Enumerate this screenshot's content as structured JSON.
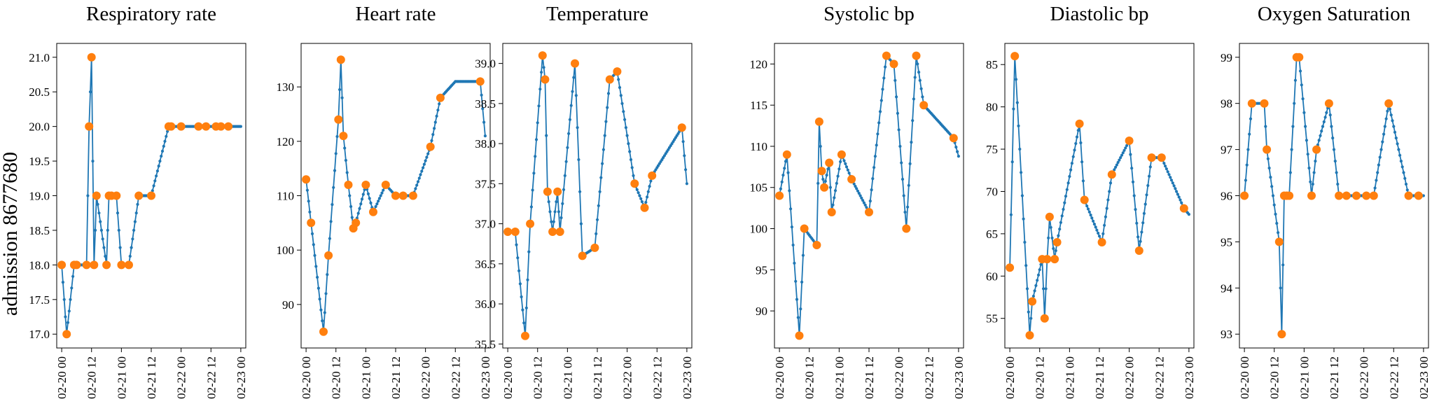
{
  "figure": {
    "row_label": "admission 8677680"
  },
  "chart_data": [
    {
      "type": "line",
      "title": "Respiratory rate",
      "xlabel": "",
      "ylabel": "",
      "ylim": [
        16.8,
        21.2
      ],
      "yticks": [
        17.0,
        17.5,
        18.0,
        18.5,
        19.0,
        19.5,
        20.0,
        20.5,
        21.0
      ],
      "ytick_labels": [
        "17.0",
        "17.5",
        "18.0",
        "18.5",
        "19.0",
        "19.5",
        "20.0",
        "20.5",
        "21.0"
      ],
      "xlim": [
        -2,
        74
      ],
      "xticks": [
        0,
        12,
        24,
        36,
        48,
        60,
        72
      ],
      "xtick_labels": [
        "02-20 00",
        "02-20 12",
        "02-21 00",
        "02-21 12",
        "02-22 00",
        "02-22 12",
        "02-23 00"
      ],
      "x_unit": "hours since 02-20 00:00",
      "series": [
        {
          "role": "interpolated",
          "color": "#1f77b4",
          "end_x": 72,
          "x": [
            0,
            2,
            5,
            6,
            10,
            11,
            12,
            13,
            14,
            18,
            19,
            20,
            22,
            24,
            27,
            31,
            36,
            43,
            44,
            48,
            55,
            58,
            62,
            64,
            67
          ],
          "y": [
            18,
            17,
            18,
            18,
            18,
            20,
            21,
            18,
            19,
            18,
            19,
            19,
            19,
            18,
            18,
            19,
            19,
            20,
            20,
            20,
            20,
            20,
            20,
            20,
            20
          ]
        },
        {
          "role": "observed",
          "color": "#ff7f0e",
          "x": [
            0,
            2,
            5,
            6,
            10,
            11,
            12,
            13,
            14,
            18,
            19,
            20,
            22,
            24,
            27,
            31,
            36,
            43,
            44,
            48,
            55,
            58,
            62,
            64,
            67
          ],
          "y": [
            18,
            17,
            18,
            18,
            18,
            20,
            21,
            18,
            19,
            18,
            19,
            19,
            19,
            18,
            18,
            19,
            19,
            20,
            20,
            20,
            20,
            20,
            20,
            20,
            20
          ]
        }
      ]
    },
    {
      "type": "line",
      "title": "Heart rate",
      "xlabel": "",
      "ylabel": "",
      "ylim": [
        82,
        138
      ],
      "yticks": [
        90,
        100,
        110,
        120,
        130
      ],
      "ytick_labels": [
        "90",
        "100",
        "110",
        "120",
        "130"
      ],
      "xlim": [
        -2,
        74
      ],
      "xticks": [
        0,
        12,
        24,
        36,
        48,
        60,
        72
      ],
      "xtick_labels": [
        "02-20 00",
        "02-20 12",
        "02-21 00",
        "02-21 12",
        "02-22 00",
        "02-22 12",
        "02-23 00"
      ],
      "x_unit": "hours since 02-20 00:00",
      "series": [
        {
          "role": "interpolated",
          "color": "#1f77b4",
          "end_x": 72,
          "end_y": 121,
          "x": [
            0,
            2,
            7,
            9,
            13,
            14,
            15,
            17,
            19,
            20,
            24,
            27,
            32,
            36,
            39,
            43,
            50,
            54,
            60,
            70
          ],
          "y": [
            113,
            105,
            85,
            99,
            124,
            135,
            121,
            112,
            104,
            105,
            112,
            107,
            112,
            110,
            110,
            110,
            119,
            128,
            131,
            131
          ]
        },
        {
          "role": "observed",
          "color": "#ff7f0e",
          "x": [
            0,
            2,
            7,
            9,
            13,
            14,
            15,
            17,
            19,
            20,
            24,
            27,
            32,
            36,
            39,
            43,
            50,
            54,
            70
          ],
          "y": [
            113,
            105,
            85,
            99,
            124,
            135,
            121,
            112,
            104,
            105,
            112,
            107,
            112,
            110,
            110,
            110,
            119,
            128,
            131
          ]
        }
      ]
    },
    {
      "type": "line",
      "title": "Temperature",
      "xlabel": "",
      "ylabel": "",
      "ylim": [
        35.45,
        39.25
      ],
      "yticks": [
        35.5,
        36.0,
        36.5,
        37.0,
        37.5,
        38.0,
        38.5,
        39.0
      ],
      "ytick_labels": [
        "35.5",
        "36.0",
        "36.5",
        "37.0",
        "37.5",
        "38.0",
        "38.5",
        "39.0"
      ],
      "xlim": [
        -2,
        74
      ],
      "xticks": [
        0,
        12,
        24,
        36,
        48,
        60,
        72
      ],
      "xtick_labels": [
        "02-20 00",
        "02-20 12",
        "02-21 00",
        "02-21 12",
        "02-22 00",
        "02-22 12",
        "02-23 00"
      ],
      "x_unit": "hours since 02-20 00:00",
      "series": [
        {
          "role": "interpolated",
          "color": "#1f77b4",
          "end_x": 72,
          "end_y": 37.5,
          "x": [
            0,
            3,
            7,
            9,
            14,
            15,
            16,
            18,
            20,
            21,
            27,
            30,
            35,
            41,
            44,
            51,
            55,
            58,
            70
          ],
          "y": [
            36.9,
            36.9,
            35.6,
            37.0,
            39.1,
            38.8,
            37.4,
            36.9,
            37.4,
            36.9,
            39.0,
            36.6,
            36.7,
            38.8,
            38.9,
            37.5,
            37.2,
            37.6,
            38.2
          ]
        },
        {
          "role": "observed",
          "color": "#ff7f0e",
          "x": [
            0,
            3,
            7,
            9,
            14,
            15,
            16,
            18,
            20,
            21,
            27,
            30,
            35,
            41,
            44,
            51,
            55,
            58,
            70
          ],
          "y": [
            36.9,
            36.9,
            35.6,
            37.0,
            39.1,
            38.8,
            37.4,
            36.9,
            37.4,
            36.9,
            39.0,
            36.6,
            36.7,
            38.8,
            38.9,
            37.5,
            37.2,
            37.6,
            38.2
          ]
        }
      ]
    },
    {
      "type": "line",
      "title": "Systolic bp",
      "xlabel": "",
      "ylabel": "",
      "ylim": [
        85.5,
        122.5
      ],
      "yticks": [
        90,
        95,
        100,
        105,
        110,
        115,
        120
      ],
      "ytick_labels": [
        "90",
        "95",
        "100",
        "105",
        "110",
        "115",
        "120"
      ],
      "xlim": [
        -2,
        74
      ],
      "xticks": [
        0,
        12,
        24,
        36,
        48,
        60,
        72
      ],
      "xtick_labels": [
        "02-20 00",
        "02-20 12",
        "02-21 00",
        "02-21 12",
        "02-22 00",
        "02-22 12",
        "02-23 00"
      ],
      "x_unit": "hours since 02-20 00:00",
      "series": [
        {
          "role": "interpolated",
          "color": "#1f77b4",
          "end_x": 72,
          "end_y": 108.8,
          "x": [
            0,
            3,
            8,
            10,
            15,
            16,
            17,
            18,
            20,
            21,
            25,
            29,
            36,
            43,
            46,
            51,
            55,
            58,
            70
          ],
          "y": [
            104,
            109,
            87,
            100,
            98,
            113,
            107,
            105,
            108,
            102,
            109,
            106,
            102,
            121,
            120,
            100,
            121,
            115,
            111
          ]
        },
        {
          "role": "observed",
          "color": "#ff7f0e",
          "x": [
            0,
            3,
            8,
            10,
            15,
            16,
            17,
            18,
            20,
            21,
            25,
            29,
            36,
            43,
            46,
            51,
            55,
            58,
            70
          ],
          "y": [
            104,
            109,
            87,
            100,
            98,
            113,
            107,
            105,
            108,
            102,
            109,
            106,
            102,
            121,
            120,
            100,
            121,
            115,
            111
          ]
        }
      ]
    },
    {
      "type": "line",
      "title": "Diastolic bp",
      "xlabel": "",
      "ylabel": "",
      "ylim": [
        51.5,
        87.5
      ],
      "yticks": [
        55,
        60,
        65,
        70,
        75,
        80,
        85
      ],
      "ytick_labels": [
        "55",
        "60",
        "65",
        "70",
        "75",
        "80",
        "85"
      ],
      "xlim": [
        -2,
        74
      ],
      "xticks": [
        0,
        12,
        24,
        36,
        48,
        60,
        72
      ],
      "xtick_labels": [
        "02-20 00",
        "02-20 12",
        "02-21 00",
        "02-21 12",
        "02-22 00",
        "02-22 12",
        "02-23 00"
      ],
      "x_unit": "hours since 02-20 00:00",
      "series": [
        {
          "role": "interpolated",
          "color": "#1f77b4",
          "end_x": 72,
          "end_y": 67.3,
          "x": [
            0,
            2,
            8,
            9,
            13,
            14,
            15,
            16,
            18,
            19,
            28,
            30,
            37,
            41,
            48,
            52,
            57,
            61,
            70
          ],
          "y": [
            61,
            86,
            53,
            57,
            62,
            55,
            62,
            67,
            62,
            64,
            78,
            69,
            64,
            72,
            76,
            63,
            74,
            74,
            68
          ]
        },
        {
          "role": "observed",
          "color": "#ff7f0e",
          "x": [
            0,
            2,
            8,
            9,
            13,
            14,
            15,
            16,
            18,
            19,
            28,
            30,
            37,
            41,
            48,
            52,
            57,
            61,
            70
          ],
          "y": [
            61,
            86,
            53,
            57,
            62,
            55,
            62,
            67,
            62,
            64,
            78,
            69,
            64,
            72,
            76,
            63,
            74,
            74,
            68
          ]
        }
      ]
    },
    {
      "type": "line",
      "title": "Oxygen Saturation",
      "xlabel": "",
      "ylabel": "",
      "ylim": [
        92.7,
        99.3
      ],
      "yticks": [
        93,
        94,
        95,
        96,
        97,
        98,
        99
      ],
      "ytick_labels": [
        "93",
        "94",
        "95",
        "96",
        "97",
        "98",
        "99"
      ],
      "xlim": [
        -2,
        74
      ],
      "xticks": [
        0,
        12,
        24,
        36,
        48,
        60,
        72
      ],
      "xtick_labels": [
        "02-20 00",
        "02-20 12",
        "02-21 00",
        "02-21 12",
        "02-22 00",
        "02-22 12",
        "02-23 00"
      ],
      "x_unit": "hours since 02-20 00:00",
      "series": [
        {
          "role": "interpolated",
          "color": "#1f77b4",
          "end_x": 72,
          "x": [
            0,
            3,
            8,
            9,
            14,
            15,
            16,
            17,
            18,
            21,
            22,
            27,
            29,
            34,
            38,
            41,
            45,
            49,
            52,
            58,
            66,
            70
          ],
          "y": [
            96,
            98,
            98,
            97,
            95,
            93,
            96,
            96,
            96,
            99,
            99,
            96,
            97,
            98,
            96,
            96,
            96,
            96,
            96,
            98,
            96,
            96
          ]
        },
        {
          "role": "observed",
          "color": "#ff7f0e",
          "x": [
            0,
            3,
            8,
            9,
            14,
            15,
            16,
            17,
            18,
            21,
            22,
            27,
            29,
            34,
            38,
            41,
            45,
            49,
            52,
            58,
            66,
            70
          ],
          "y": [
            96,
            98,
            98,
            97,
            95,
            93,
            96,
            96,
            96,
            99,
            99,
            96,
            97,
            98,
            96,
            96,
            96,
            96,
            96,
            98,
            96,
            96
          ]
        }
      ]
    }
  ]
}
